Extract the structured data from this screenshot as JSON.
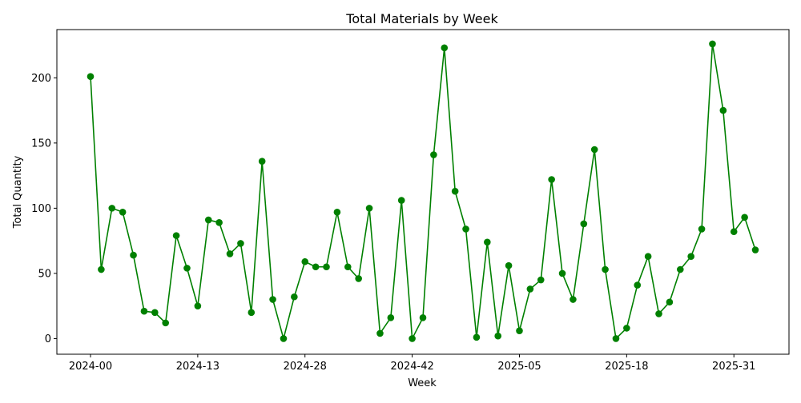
{
  "chart_data": {
    "type": "line",
    "title": "Total Materials by Week",
    "xlabel": "Week",
    "ylabel": "Total Quantity",
    "color": "#008000",
    "grid": false,
    "legend": "none",
    "ylim": [
      -12,
      237
    ],
    "yticks": [
      0,
      50,
      100,
      150,
      200
    ],
    "xticks": [
      {
        "index": 0,
        "label": "2024-00"
      },
      {
        "index": 10,
        "label": "2024-13"
      },
      {
        "index": 20,
        "label": "2024-28"
      },
      {
        "index": 30,
        "label": "2024-42"
      },
      {
        "index": 40,
        "label": "2025-05"
      },
      {
        "index": 50,
        "label": "2025-18"
      },
      {
        "index": 60,
        "label": "2025-31"
      }
    ],
    "values": [
      201,
      53,
      100,
      97,
      64,
      21,
      20,
      12,
      79,
      54,
      25,
      91,
      89,
      65,
      73,
      20,
      136,
      30,
      0,
      32,
      59,
      55,
      55,
      97,
      55,
      46,
      100,
      4,
      16,
      106,
      0,
      16,
      141,
      223,
      113,
      84,
      1,
      74,
      2,
      56,
      6,
      38,
      45,
      122,
      50,
      30,
      88,
      145,
      53,
      0,
      8,
      41,
      63,
      19,
      28,
      53,
      63,
      84,
      226,
      175,
      82,
      93,
      68
    ]
  }
}
